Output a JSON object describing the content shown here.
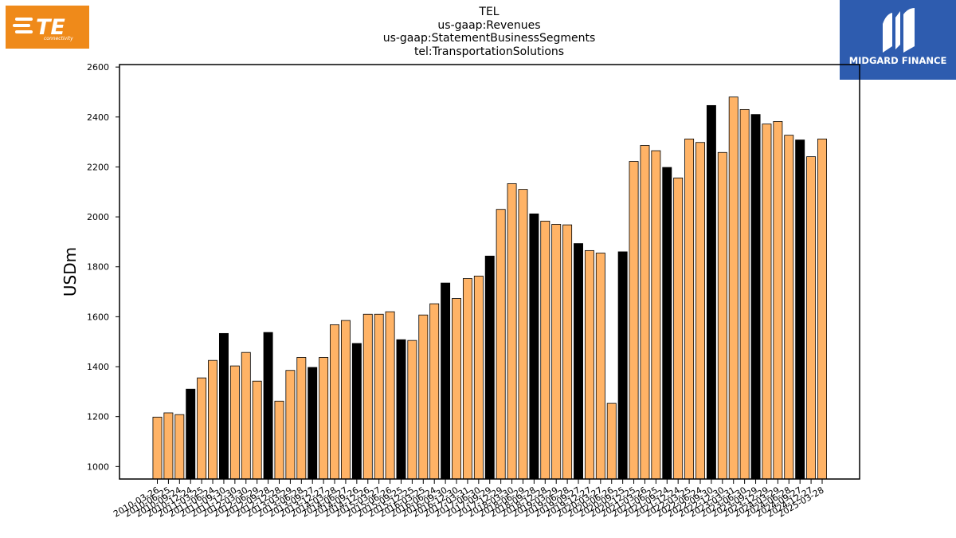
{
  "logos": {
    "left_text": "TE",
    "left_subtext": "connectivity",
    "left_color": "#ef8a1a",
    "right_text": "MIDGARD FINANCE",
    "right_color": "#2e5caf"
  },
  "chart_data": {
    "type": "bar",
    "title": [
      "TEL",
      "us-gaap:Revenues",
      "us-gaap:StatementBusinessSegments",
      "tel:TransportationSolutions"
    ],
    "ylabel": "USDm",
    "xlabel": "",
    "ylim": [
      950,
      2610
    ],
    "yticks": [
      1000,
      1200,
      1400,
      1600,
      1800,
      2000,
      2200,
      2400,
      2600
    ],
    "grid": false,
    "bar_color": "#ffb366",
    "highlight_color": "#000000",
    "categories": [
      "2010-03-26",
      "2010-06-25",
      "2010-09-24",
      "2010-12-24",
      "2011-03-25",
      "2011-06-24",
      "2011-09-30",
      "2011-12-30",
      "2012-03-30",
      "2012-06-29",
      "2012-09-28",
      "2012-12-28",
      "2013-03-29",
      "2013-06-28",
      "2013-09-27",
      "2013-12-27",
      "2014-03-28",
      "2014-06-27",
      "2014-09-26",
      "2014-12-26",
      "2015-03-27",
      "2015-06-26",
      "2015-09-25",
      "2015-12-25",
      "2016-03-25",
      "2016-06-24",
      "2016-09-30",
      "2016-12-30",
      "2017-03-31",
      "2017-06-30",
      "2017-09-29",
      "2017-12-29",
      "2018-03-30",
      "2018-06-29",
      "2018-09-28",
      "2018-12-28",
      "2019-03-29",
      "2019-06-28",
      "2019-09-27",
      "2019-12-27",
      "2020-03-27",
      "2020-06-26",
      "2020-09-25",
      "2020-12-25",
      "2021-03-26",
      "2021-06-25",
      "2021-09-24",
      "2021-12-24",
      "2022-03-25",
      "2022-06-24",
      "2022-09-30",
      "2022-12-30",
      "2023-03-31",
      "2023-06-30",
      "2023-09-29",
      "2023-12-29",
      "2024-03-29",
      "2024-06-28",
      "2024-09-27",
      "2024-12-27",
      "2025-03-28"
    ],
    "values": [
      1198,
      1215,
      1208,
      1310,
      1355,
      1425,
      1533,
      1403,
      1457,
      1342,
      1537,
      1262,
      1385,
      1437,
      1397,
      1437,
      1568,
      1585,
      1493,
      1610,
      1610,
      1620,
      1508,
      1505,
      1607,
      1652,
      1735,
      1673,
      1753,
      1763,
      1843,
      2030,
      2133,
      2110,
      2012,
      1983,
      1970,
      1968,
      1893,
      1865,
      1855,
      1253,
      1860,
      2222,
      2286,
      2265,
      2198,
      2156,
      2312,
      2298,
      2446,
      2258,
      2480,
      2430,
      2410,
      2372,
      2382,
      2327,
      2308,
      2241,
      2312
    ],
    "highlighted_indices": [
      3,
      6,
      10,
      14,
      18,
      22,
      26,
      30,
      34,
      38,
      42,
      46,
      50,
      54,
      58
    ]
  }
}
